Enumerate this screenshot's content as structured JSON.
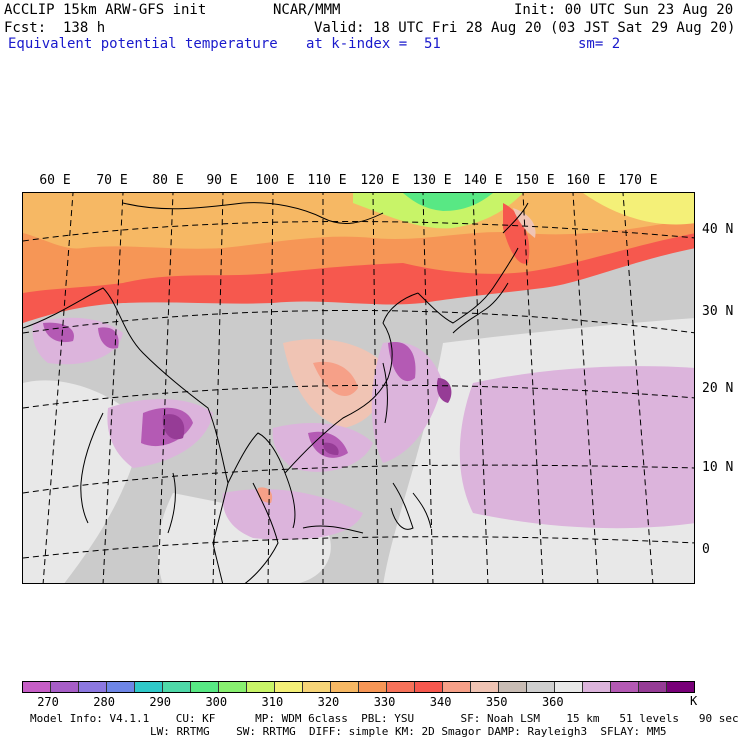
{
  "header": {
    "model": "ACCLIP 15km ARW-GFS init",
    "center": "NCAR/MMM",
    "init": "Init: 00 UTC Sun 23 Aug 20",
    "fcst": "Fcst:  138 h",
    "valid": "Valid: 18 UTC Fri 28 Aug 20 (03 JST Sat 29 Aug 20)",
    "field": "Equivalent potential temperature",
    "level": "at k-index =  51",
    "smooth": "sm= 2"
  },
  "lon_labels": [
    "60 E",
    "70 E",
    "80 E",
    "90 E",
    "100 E",
    "110 E",
    "120 E",
    "130 E",
    "140 E",
    "150 E",
    "160 E",
    "170 E"
  ],
  "lat_labels": [
    "40 N",
    "30 N",
    "20 N",
    "10 N",
    "0"
  ],
  "colorbar": {
    "unit": "K",
    "labels": [
      "270",
      "280",
      "290",
      "300",
      "310",
      "320",
      "330",
      "340",
      "350",
      "360"
    ],
    "colors": [
      "#c65ec6",
      "#a75ec7",
      "#8c78e0",
      "#6e86e6",
      "#2fc9c9",
      "#4fd8a8",
      "#58e884",
      "#88f070",
      "#c8f468",
      "#f4f078",
      "#f6d478",
      "#f6b864",
      "#f69656",
      "#f6725a",
      "#f6584e",
      "#f6a088",
      "#f0c4b4",
      "#c8bcb4",
      "#cfcfcf",
      "#e8e8e8",
      "#dcb4dc",
      "#b45ab4",
      "#963c96",
      "#780078"
    ]
  },
  "footer": {
    "line1": "Model Info: V4.1.1    CU: KF      MP: WDM 6class  PBL: YSU       SF: Noah LSM    15 km   51 levels   90 sec",
    "line2": "LW: RRTMG    SW: RRTMG  DIFF: simple KM: 2D Smagor DAMP: Rayleigh3  SFLAY: MM5"
  }
}
